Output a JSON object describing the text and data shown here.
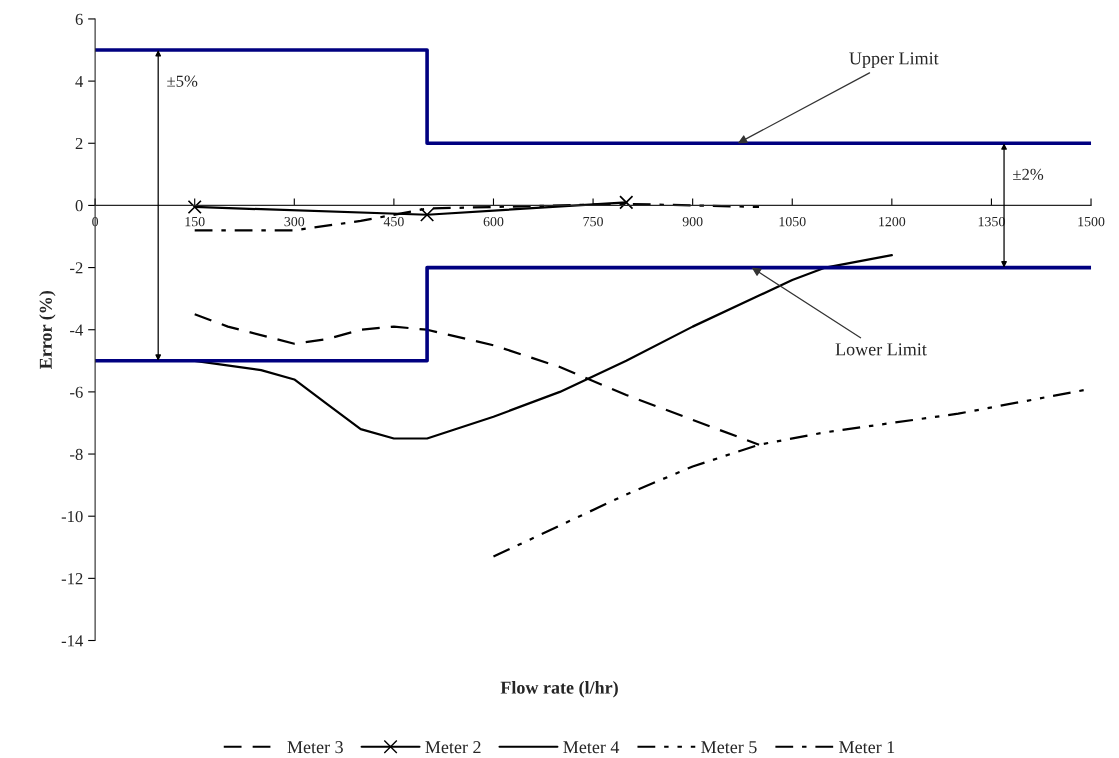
{
  "chart_data": {
    "type": "line",
    "xlabel": "Flow rate (l/hr)",
    "ylabel": "Error (%)",
    "xlim": [
      0,
      1500
    ],
    "xticks": [
      0,
      150,
      300,
      450,
      600,
      750,
      900,
      1050,
      1200,
      1350,
      1500
    ],
    "ylim": [
      -14,
      6
    ],
    "yticks": [
      -14,
      -12,
      -10,
      -8,
      -6,
      -4,
      -2,
      0,
      2,
      4,
      6
    ],
    "grid": false,
    "legend": "bottom",
    "series": [
      {
        "name": "Meter 3",
        "color": "#000000",
        "line_style": "dashed",
        "x": [
          150,
          200,
          300,
          350,
          400,
          450,
          500,
          600,
          700,
          800,
          900,
          1000
        ],
        "values": [
          -3.5,
          -3.9,
          -4.45,
          -4.3,
          -4.0,
          -3.9,
          -4.0,
          -4.5,
          -5.2,
          -6.1,
          -6.9,
          -7.7
        ]
      },
      {
        "name": "Meter 2",
        "color": "#000000",
        "line_style": "solid",
        "marker": "cross",
        "x": [
          150,
          500,
          800
        ],
        "values": [
          -0.05,
          -0.3,
          0.1
        ]
      },
      {
        "name": "Meter 4",
        "color": "#000000",
        "line_style": "solid",
        "x": [
          150,
          250,
          300,
          350,
          400,
          450,
          500,
          600,
          700,
          800,
          900,
          1000,
          1050,
          1100,
          1200
        ],
        "values": [
          -5.0,
          -5.3,
          -5.6,
          -6.4,
          -7.2,
          -7.5,
          -7.5,
          -6.8,
          -6.0,
          -5.0,
          -3.9,
          -2.9,
          -2.4,
          -2.0,
          -1.6
        ]
      },
      {
        "name": "Meter 5",
        "color": "#000000",
        "line_style": "dashdotdot",
        "x": [
          600,
          700,
          800,
          900,
          1000,
          1100,
          1200,
          1300,
          1400,
          1500
        ],
        "values": [
          -11.3,
          -10.3,
          -9.3,
          -8.4,
          -7.7,
          -7.3,
          -7.0,
          -6.7,
          -6.3,
          -5.9
        ]
      },
      {
        "name": "Meter 1",
        "color": "#000000",
        "line_style": "dashdot",
        "x": [
          150,
          300,
          400,
          500,
          600,
          800,
          1000
        ],
        "values": [
          -0.8,
          -0.8,
          -0.5,
          -0.1,
          -0.05,
          0.05,
          -0.05
        ]
      },
      {
        "color": "#000080",
        "line_style": "solid",
        "x": [
          0,
          500,
          500,
          1500
        ],
        "values": [
          5,
          5,
          2,
          2
        ]
      },
      {
        "color": "#000080",
        "line_style": "solid",
        "x": [
          0,
          500,
          500,
          1500
        ],
        "values": [
          -5,
          -5,
          -2,
          -2
        ]
      }
    ],
    "annotations": [
      {
        "text": "Upper Limit",
        "x": 968,
        "y": 2
      },
      {
        "text": "Lower Limit",
        "x": 989,
        "y": -2
      },
      {
        "text": "±5%",
        "x": 95,
        "y": 5
      },
      {
        "text": "±2%",
        "x": 1369,
        "y": 2
      }
    ]
  }
}
